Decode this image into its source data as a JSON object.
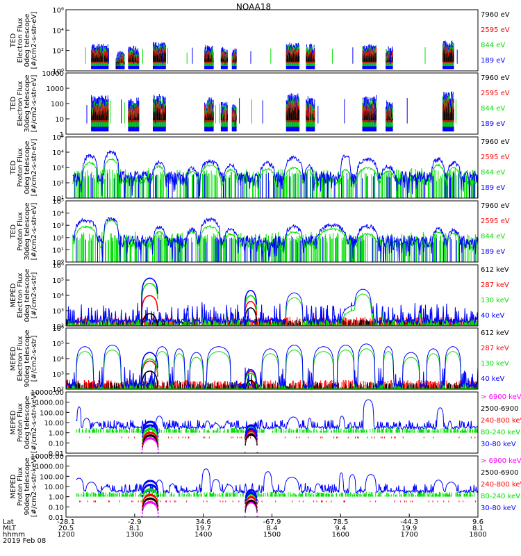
{
  "title": "NOAA18",
  "colors": {
    "black": "#000000",
    "red": "#ff0000",
    "green": "#00e000",
    "blue": "#0000ff",
    "magenta": "#ff00ff"
  },
  "chart_data": [
    {
      "type": "scatter",
      "ylabel": [
        "TED",
        "Electron Flux",
        "0deg telescope",
        "[#/cm2-s-str-eV]"
      ],
      "ylog": true,
      "ylim": [
        1,
        1000000
      ],
      "yticks": [
        "10⁰",
        "10²",
        "10⁴",
        "10⁶"
      ],
      "legend": [
        {
          "name": "7960 eV",
          "color": "black"
        },
        {
          "name": "2595 eV",
          "color": "red"
        },
        {
          "name": "844 eV",
          "color": "green"
        },
        {
          "name": "189 eV",
          "color": "blue"
        }
      ],
      "kind": "ted_e",
      "bursts": [
        [
          1237,
          1262,
          200
        ],
        [
          1273,
          1285,
          40
        ],
        [
          1291,
          1306,
          120
        ],
        [
          1327,
          1345,
          300
        ],
        [
          1402,
          1415,
          150
        ],
        [
          1426,
          1435,
          100
        ],
        [
          1442,
          1448,
          80
        ],
        [
          1521,
          1540,
          250
        ],
        [
          1550,
          1562,
          200
        ],
        [
          1632,
          1652,
          200
        ],
        [
          1666,
          1676,
          100
        ],
        [
          1749,
          1765,
          400
        ]
      ]
    },
    {
      "type": "scatter",
      "ylabel": [
        "TED",
        "Electron Flux",
        "30deg telescope",
        "[#/cm2-s-str-eV]"
      ],
      "ylog": true,
      "ylim": [
        1,
        10000
      ],
      "yticks": [
        "1",
        "10",
        "100",
        "1000",
        "10000"
      ],
      "legend": [
        {
          "name": "7960 eV",
          "color": "black"
        },
        {
          "name": "2595 eV",
          "color": "red"
        },
        {
          "name": "844 eV",
          "color": "green"
        },
        {
          "name": "189 eV",
          "color": "blue"
        }
      ],
      "kind": "ted_e",
      "bursts": [
        [
          1237,
          1262,
          150
        ],
        [
          1291,
          1306,
          100
        ],
        [
          1327,
          1345,
          200
        ],
        [
          1402,
          1415,
          120
        ],
        [
          1426,
          1435,
          80
        ],
        [
          1442,
          1448,
          60
        ],
        [
          1521,
          1540,
          200
        ],
        [
          1550,
          1562,
          150
        ],
        [
          1632,
          1652,
          150
        ],
        [
          1666,
          1676,
          80
        ],
        [
          1749,
          1765,
          300
        ]
      ]
    },
    {
      "type": "scatter",
      "ylabel": [
        "TED",
        "Proton Flux",
        "0deg telescope",
        "[#/cm2-s-str-eV]"
      ],
      "ylog": true,
      "ylim": [
        1,
        100000
      ],
      "yticks": [
        "10¹",
        "10²",
        "10³",
        "10⁴",
        "10⁵"
      ],
      "legend": [
        {
          "name": "7960 eV",
          "color": "black"
        },
        {
          "name": "2595 eV",
          "color": "red"
        },
        {
          "name": "844 eV",
          "color": "green"
        },
        {
          "name": "189 eV",
          "color": "blue"
        }
      ],
      "kind": "ted_p",
      "humps": [
        [
          1224,
          1246,
          3000,
          800
        ],
        [
          1255,
          1277,
          6000,
          1500
        ],
        [
          1325,
          1345,
          800,
          400
        ],
        [
          1375,
          1392,
          300,
          150
        ],
        [
          1395,
          1425,
          1000,
          500
        ],
        [
          1430,
          1450,
          500,
          200
        ],
        [
          1482,
          1505,
          800,
          250
        ],
        [
          1518,
          1545,
          2000,
          300
        ],
        [
          1548,
          1560,
          600,
          200
        ],
        [
          1600,
          1615,
          3000,
          200
        ],
        [
          1623,
          1655,
          1500,
          300
        ],
        [
          1658,
          1680,
          400,
          150
        ],
        [
          1732,
          1752,
          1500,
          500
        ],
        [
          1755,
          1775,
          800,
          300
        ]
      ]
    },
    {
      "type": "scatter",
      "ylabel": [
        "TED",
        "Proton Flux",
        "30deg telescope",
        "[#/cm2-s-str-eV]"
      ],
      "ylog": true,
      "ylim": [
        1,
        100000
      ],
      "yticks": [
        "10⁰",
        "10¹",
        "10²",
        "10³",
        "10⁴",
        "10⁵"
      ],
      "legend": [
        {
          "name": "7960 eV",
          "color": "black"
        },
        {
          "name": "2595 eV",
          "color": "red"
        },
        {
          "name": "844 eV",
          "color": "green"
        },
        {
          "name": "189 eV",
          "color": "blue"
        }
      ],
      "kind": "ted_p",
      "humps": [
        [
          1212,
          1246,
          3000,
          800
        ],
        [
          1255,
          1277,
          4000,
          2500
        ],
        [
          1327,
          1345,
          800,
          300
        ],
        [
          1375,
          1392,
          500,
          300
        ],
        [
          1395,
          1425,
          3000,
          800
        ],
        [
          1430,
          1450,
          500,
          200
        ],
        [
          1518,
          1545,
          800,
          300
        ],
        [
          1565,
          1610,
          1000,
          500
        ],
        [
          1623,
          1655,
          900,
          200
        ],
        [
          1733,
          1752,
          500,
          300
        ],
        [
          1755,
          1775,
          400,
          200
        ]
      ]
    },
    {
      "type": "line",
      "ylabel": [
        "MEPED",
        "Electron Flux",
        "0deg telescope",
        "[#/cm2-s-str]"
      ],
      "ylog": true,
      "ylim": [
        100,
        10000000
      ],
      "yticks": [
        "10²",
        "10³",
        "10⁴",
        "10⁵",
        "10⁶"
      ],
      "legend": [
        {
          "name": "612 keV",
          "color": "black"
        },
        {
          "name": "287 keV",
          "color": "red"
        },
        {
          "name": "130 keV",
          "color": "green"
        },
        {
          "name": "40 keV",
          "color": "blue"
        }
      ],
      "kind": "meped_e0",
      "saa": [
        [
          1310,
          1334,
          [
            1000,
            30000,
            300000,
            800000
          ]
        ],
        [
          1460,
          1478,
          [
            3000,
            10000,
            30000,
            80000
          ]
        ]
      ],
      "blue_humps": [
        [
          1520,
          1545,
          50000
        ],
        [
          1620,
          1645,
          100000
        ],
        [
          1600,
          1650,
          5000
        ]
      ]
    },
    {
      "type": "line",
      "ylabel": [
        "MEPED",
        "Electron Flux",
        "90deg telescope",
        "[#/cm2-s-str]"
      ],
      "ylog": true,
      "ylim": [
        100,
        10000000
      ],
      "yticks": [
        "10²",
        "10³",
        "10⁴",
        "10⁵",
        "10⁶"
      ],
      "legend": [
        {
          "name": "612 keV",
          "color": "black"
        },
        {
          "name": "287 keV",
          "color": "red"
        },
        {
          "name": "130 keV",
          "color": "green"
        },
        {
          "name": "40 keV",
          "color": "blue"
        }
      ],
      "kind": "meped_e90",
      "saa": [
        [
          1310,
          1334,
          [
            3000,
            20000,
            30000,
            100000
          ]
        ],
        [
          1460,
          1478,
          [
            500,
            3000,
            2000,
            4000
          ]
        ]
      ],
      "blue_humps": [
        [
          1215,
          1240,
          300000
        ],
        [
          1255,
          1280,
          400000
        ],
        [
          1330,
          1350,
          300000
        ],
        [
          1357,
          1373,
          200000
        ],
        [
          1380,
          1400,
          100000
        ],
        [
          1405,
          1440,
          300000
        ],
        [
          1485,
          1510,
          200000
        ],
        [
          1520,
          1545,
          400000
        ],
        [
          1560,
          1590,
          300000
        ],
        [
          1595,
          1620,
          400000
        ],
        [
          1625,
          1650,
          500000
        ],
        [
          1662,
          1677,
          300000
        ],
        [
          1690,
          1715,
          100000
        ],
        [
          1725,
          1745,
          200000
        ],
        [
          1752,
          1775,
          300000
        ]
      ]
    },
    {
      "type": "line",
      "ylabel": [
        "MEPED",
        "Proton Flux",
        "0deg telescope",
        "[#/cm2-s-str-keV]"
      ],
      "ylog": true,
      "ylim": [
        0.005,
        20000
      ],
      "yticks": [
        "0.01",
        "0.10",
        "1.00",
        "10.00",
        "100.00",
        "1000.00",
        "10000.00"
      ],
      "legend": [
        {
          "name": "> 6900 keV",
          "color": "magenta"
        },
        {
          "name": "2500-6900",
          "color": "black"
        },
        {
          "name": "240-800 keV",
          "color": "red"
        },
        {
          "name": "80-240 keV",
          "color": "green"
        },
        {
          "name": "30-80 keV",
          "color": "blue"
        }
      ],
      "kind": "meped_p",
      "saa": [
        [
          1310,
          1334,
          [
            0.2,
            0.4,
            0.8,
            2,
            5,
            12
          ]
        ],
        [
          1460,
          1478,
          [
            0.6,
            0.5,
            1.2,
            3,
            2,
            5
          ]
        ]
      ],
      "blue_humps": [
        [
          1216,
          1222,
          500
        ],
        [
          1224,
          1236,
          30
        ],
        [
          1238,
          1250,
          10
        ],
        [
          1258,
          1268,
          3
        ],
        [
          1330,
          1342,
          50
        ],
        [
          1402,
          1410,
          15
        ],
        [
          1412,
          1425,
          8
        ],
        [
          1430,
          1440,
          10
        ],
        [
          1442,
          1448,
          5
        ],
        [
          1522,
          1540,
          40
        ],
        [
          1552,
          1558,
          30
        ],
        [
          1598,
          1606,
          50
        ],
        [
          1612,
          1616,
          10
        ],
        [
          1633,
          1648,
          3000
        ],
        [
          1740,
          1750,
          400
        ],
        [
          1756,
          1762,
          15
        ]
      ]
    },
    {
      "type": "line",
      "ylabel": [
        "MEPED",
        "Proton Flux",
        "90deg telescope",
        "[#/cm2-s-str-keV]"
      ],
      "ylog": true,
      "ylim": [
        0.005,
        20000
      ],
      "yticks": [
        "0.01",
        "0.10",
        "1.00",
        "10.00",
        "100.00",
        "1000.00",
        "10000.00"
      ],
      "legend": [
        {
          "name": "> 6900 keV",
          "color": "magenta"
        },
        {
          "name": "2500-6900",
          "color": "black"
        },
        {
          "name": "240-800 keV",
          "color": "red"
        },
        {
          "name": "80-240 keV",
          "color": "green"
        },
        {
          "name": "30-80 keV",
          "color": "blue"
        }
      ],
      "kind": "meped_p",
      "saa": [
        [
          1310,
          1334,
          [
            0.2,
            0.5,
            1.2,
            5,
            15,
            40
          ]
        ],
        [
          1460,
          1478,
          [
            0.2,
            0.3,
            0.7,
            1.5,
            2,
            4
          ]
        ]
      ],
      "blue_humps": [
        [
          1212,
          1226,
          80
        ],
        [
          1228,
          1246,
          30
        ],
        [
          1250,
          1268,
          10
        ],
        [
          1330,
          1342,
          50
        ],
        [
          1350,
          1360,
          20
        ],
        [
          1398,
          1410,
          800
        ],
        [
          1412,
          1425,
          60
        ],
        [
          1430,
          1445,
          15
        ],
        [
          1488,
          1500,
          400
        ],
        [
          1518,
          1540,
          100
        ],
        [
          1562,
          1572,
          20
        ],
        [
          1598,
          1604,
          300
        ],
        [
          1612,
          1622,
          200
        ],
        [
          1636,
          1652,
          200
        ],
        [
          1735,
          1750,
          50
        ],
        [
          1752,
          1770,
          30
        ]
      ]
    }
  ],
  "xaxis": {
    "range": [
      1200,
      1800
    ],
    "row_labels": [
      "Lat",
      "MLT",
      "hhmm"
    ],
    "date": "2019 Feb 08",
    "ticks": [
      {
        "hhmm": "1200",
        "lat": "-28.1",
        "mlt": "20.5"
      },
      {
        "hhmm": "1300",
        "lat": "-2.9",
        "mlt": "8.1"
      },
      {
        "hhmm": "1400",
        "lat": "34.6",
        "mlt": "19.7"
      },
      {
        "hhmm": "1500",
        "lat": "-67.9",
        "mlt": "8.4"
      },
      {
        "hhmm": "1600",
        "lat": "78.5",
        "mlt": "9.4"
      },
      {
        "hhmm": "1700",
        "lat": "-44.3",
        "mlt": "19.9"
      },
      {
        "hhmm": "1800",
        "lat": "9.6",
        "mlt": "8.1"
      }
    ]
  }
}
